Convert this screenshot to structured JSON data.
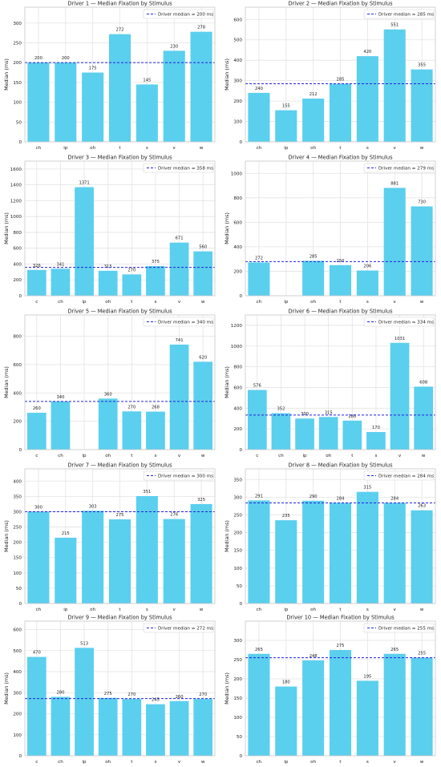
{
  "colors": {
    "bar": "#5bcfee",
    "median_line": "#2222dd",
    "grid": "#e3e3e3",
    "frame": "#c8c8c8",
    "text": "#222222"
  },
  "chart_data": [
    {
      "type": "bar",
      "title": "Driver 1 — Median Fixation by Stimulus",
      "ylabel": "Median (ms)",
      "categories": [
        "ch",
        "ip",
        "oh",
        "t",
        "s",
        "v",
        "w"
      ],
      "values": [
        200,
        200,
        175,
        272,
        145,
        230,
        278
      ],
      "bar_labels": [
        "200",
        "200",
        "175",
        "272",
        "145",
        "230",
        "278"
      ],
      "median": 200,
      "legend": "Driver median = 200 ms",
      "ylim": [
        0,
        340
      ],
      "yticks": [
        0,
        50,
        100,
        150,
        200,
        250,
        300
      ]
    },
    {
      "type": "bar",
      "title": "Driver 2 — Median Fixation by Stimulus",
      "ylabel": "Median (ms)",
      "categories": [
        "ch",
        "ip",
        "oh",
        "t",
        "s",
        "v",
        "w"
      ],
      "values": [
        240,
        155,
        212,
        285,
        420,
        551,
        355
      ],
      "bar_labels": [
        "240",
        "155",
        "212",
        "285",
        "420",
        "551",
        "355"
      ],
      "median": 285,
      "legend": "Driver median = 285 ms",
      "ylim": [
        0,
        660
      ],
      "yticks": [
        0,
        100,
        200,
        300,
        400,
        500,
        600
      ]
    },
    {
      "type": "bar",
      "title": "Driver 3 — Median Fixation by Stimulus",
      "ylabel": "Median (ms)",
      "categories": [
        "c",
        "ch",
        "ip",
        "oh",
        "t",
        "s",
        "v",
        "w"
      ],
      "values": [
        326,
        341,
        1371,
        315,
        270,
        375,
        671,
        560
      ],
      "bar_labels": [
        "326",
        "341",
        "1371",
        "315",
        "270",
        "375",
        "671",
        "560"
      ],
      "median": 358,
      "legend": "Driver median = 358 ms",
      "ylim": [
        0,
        1700
      ],
      "yticks": [
        0,
        200,
        400,
        600,
        800,
        1000,
        1200,
        1400,
        1600
      ]
    },
    {
      "type": "bar",
      "title": "Driver 4 — Median Fixation by Stimulus",
      "ylabel": "Median (ms)",
      "categories": [
        "ch",
        "ip",
        "oh",
        "t",
        "s",
        "v",
        "w"
      ],
      "values": [
        272,
        0,
        285,
        250,
        206,
        881,
        730
      ],
      "bar_labels": [
        "272",
        "",
        "285",
        "250",
        "206",
        "881",
        "730"
      ],
      "median": 279,
      "legend": "Driver median = 279 ms",
      "ylim": [
        0,
        1100
      ],
      "yticks": [
        0,
        200,
        400,
        600,
        800,
        1000
      ]
    },
    {
      "type": "bar",
      "title": "Driver 5 — Median Fixation by Stimulus",
      "ylabel": "Median (ms)",
      "categories": [
        "c",
        "ch",
        "ip",
        "oh",
        "t",
        "s",
        "v",
        "w"
      ],
      "values": [
        260,
        340,
        0,
        360,
        270,
        268,
        741,
        620
      ],
      "bar_labels": [
        "260",
        "340",
        "",
        "360",
        "270",
        "268",
        "741",
        "620"
      ],
      "median": 340,
      "legend": "Driver median = 340 ms",
      "ylim": [
        0,
        950
      ],
      "yticks": [
        0,
        200,
        400,
        600,
        800
      ]
    },
    {
      "type": "bar",
      "title": "Driver 6 — Median Fixation by Stimulus",
      "ylabel": "Median (ms)",
      "categories": [
        "c",
        "ch",
        "ip",
        "oh",
        "t",
        "s",
        "v",
        "w"
      ],
      "values": [
        576,
        352,
        300,
        315,
        280,
        170,
        1031,
        608
      ],
      "bar_labels": [
        "576",
        "352",
        "300",
        "315",
        "280",
        "170",
        "1031",
        "608"
      ],
      "median": 334,
      "legend": "Driver median = 334 ms",
      "ylim": [
        0,
        1300
      ],
      "yticks": [
        0,
        200,
        400,
        600,
        800,
        1000,
        1200
      ]
    },
    {
      "type": "bar",
      "title": "Driver 7 — Median Fixation by Stimulus",
      "ylabel": "Median (ms)",
      "categories": [
        "ch",
        "ip",
        "oh",
        "t",
        "s",
        "v",
        "w"
      ],
      "values": [
        300,
        215,
        303,
        275,
        351,
        276,
        325
      ],
      "bar_labels": [
        "300",
        "215",
        "303",
        "275",
        "351",
        "276",
        "325"
      ],
      "median": 300,
      "legend": "Driver median = 300 ms",
      "ylim": [
        0,
        440
      ],
      "yticks": [
        0,
        50,
        100,
        150,
        200,
        250,
        300,
        350,
        400
      ]
    },
    {
      "type": "bar",
      "title": "Driver 8 — Median Fixation by Stimulus",
      "ylabel": "Median (ms)",
      "categories": [
        "ch",
        "ip",
        "oh",
        "t",
        "s",
        "v",
        "w"
      ],
      "values": [
        291,
        235,
        290,
        284,
        315,
        284,
        263
      ],
      "bar_labels": [
        "291",
        "235",
        "290",
        "284",
        "315",
        "284",
        "263"
      ],
      "median": 284,
      "legend": "Driver median = 284 ms",
      "ylim": [
        0,
        380
      ],
      "yticks": [
        0,
        50,
        100,
        150,
        200,
        250,
        300,
        350
      ]
    },
    {
      "type": "bar",
      "title": "Driver 9 — Median Fixation by Stimulus",
      "ylabel": "Median (ms)",
      "categories": [
        "c",
        "ch",
        "ip",
        "oh",
        "t",
        "s",
        "v",
        "w"
      ],
      "values": [
        470,
        280,
        513,
        275,
        270,
        245,
        260,
        270
      ],
      "bar_labels": [
        "470",
        "280",
        "513",
        "275",
        "270",
        "245",
        "260",
        "270"
      ],
      "median": 272,
      "legend": "Driver median = 272 ms",
      "ylim": [
        0,
        640
      ],
      "yticks": [
        0,
        100,
        200,
        300,
        400,
        500,
        600
      ]
    },
    {
      "type": "bar",
      "title": "Driver 10 — Median Fixation by Stimulus",
      "ylabel": "Median (ms)",
      "categories": [
        "ch",
        "ip",
        "oh",
        "t",
        "s",
        "v",
        "w"
      ],
      "values": [
        265,
        180,
        248,
        275,
        195,
        265,
        255
      ],
      "bar_labels": [
        "265",
        "180",
        "248",
        "275",
        "195",
        "265",
        "255"
      ],
      "median": 255,
      "legend": "Driver median = 255 ms",
      "ylim": [
        0,
        350
      ],
      "yticks": [
        0,
        50,
        100,
        150,
        200,
        250,
        300
      ]
    }
  ]
}
